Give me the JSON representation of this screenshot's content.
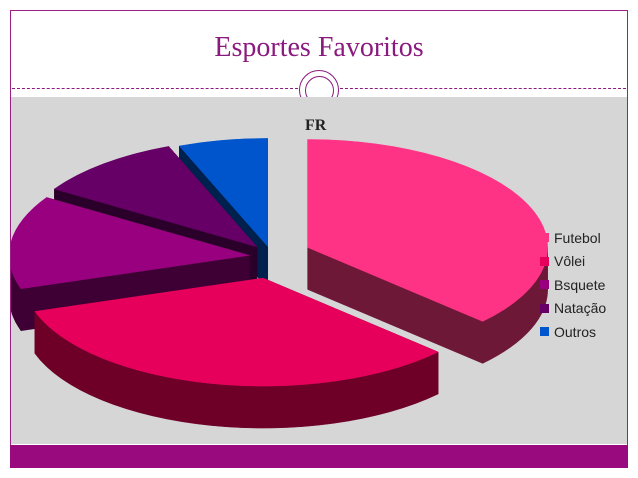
{
  "slide": {
    "title": "Esportes Favoritos"
  },
  "chart_data": {
    "type": "pie",
    "style": "3d-exploded",
    "title": "FR",
    "categories": [
      "Futebol",
      "Vôlei",
      "Bsquete",
      "Natação",
      "Outros"
    ],
    "values": [
      37,
      33,
      14,
      10,
      6
    ],
    "colors": [
      "#ff3385",
      "#e6005c",
      "#990080",
      "#660066",
      "#0055cc"
    ],
    "side_colors": [
      "#6e1838",
      "#6e0028",
      "#3e0034",
      "#2a002a",
      "#00204e"
    ],
    "legend_position": "right",
    "background": "#d6d6d6"
  }
}
